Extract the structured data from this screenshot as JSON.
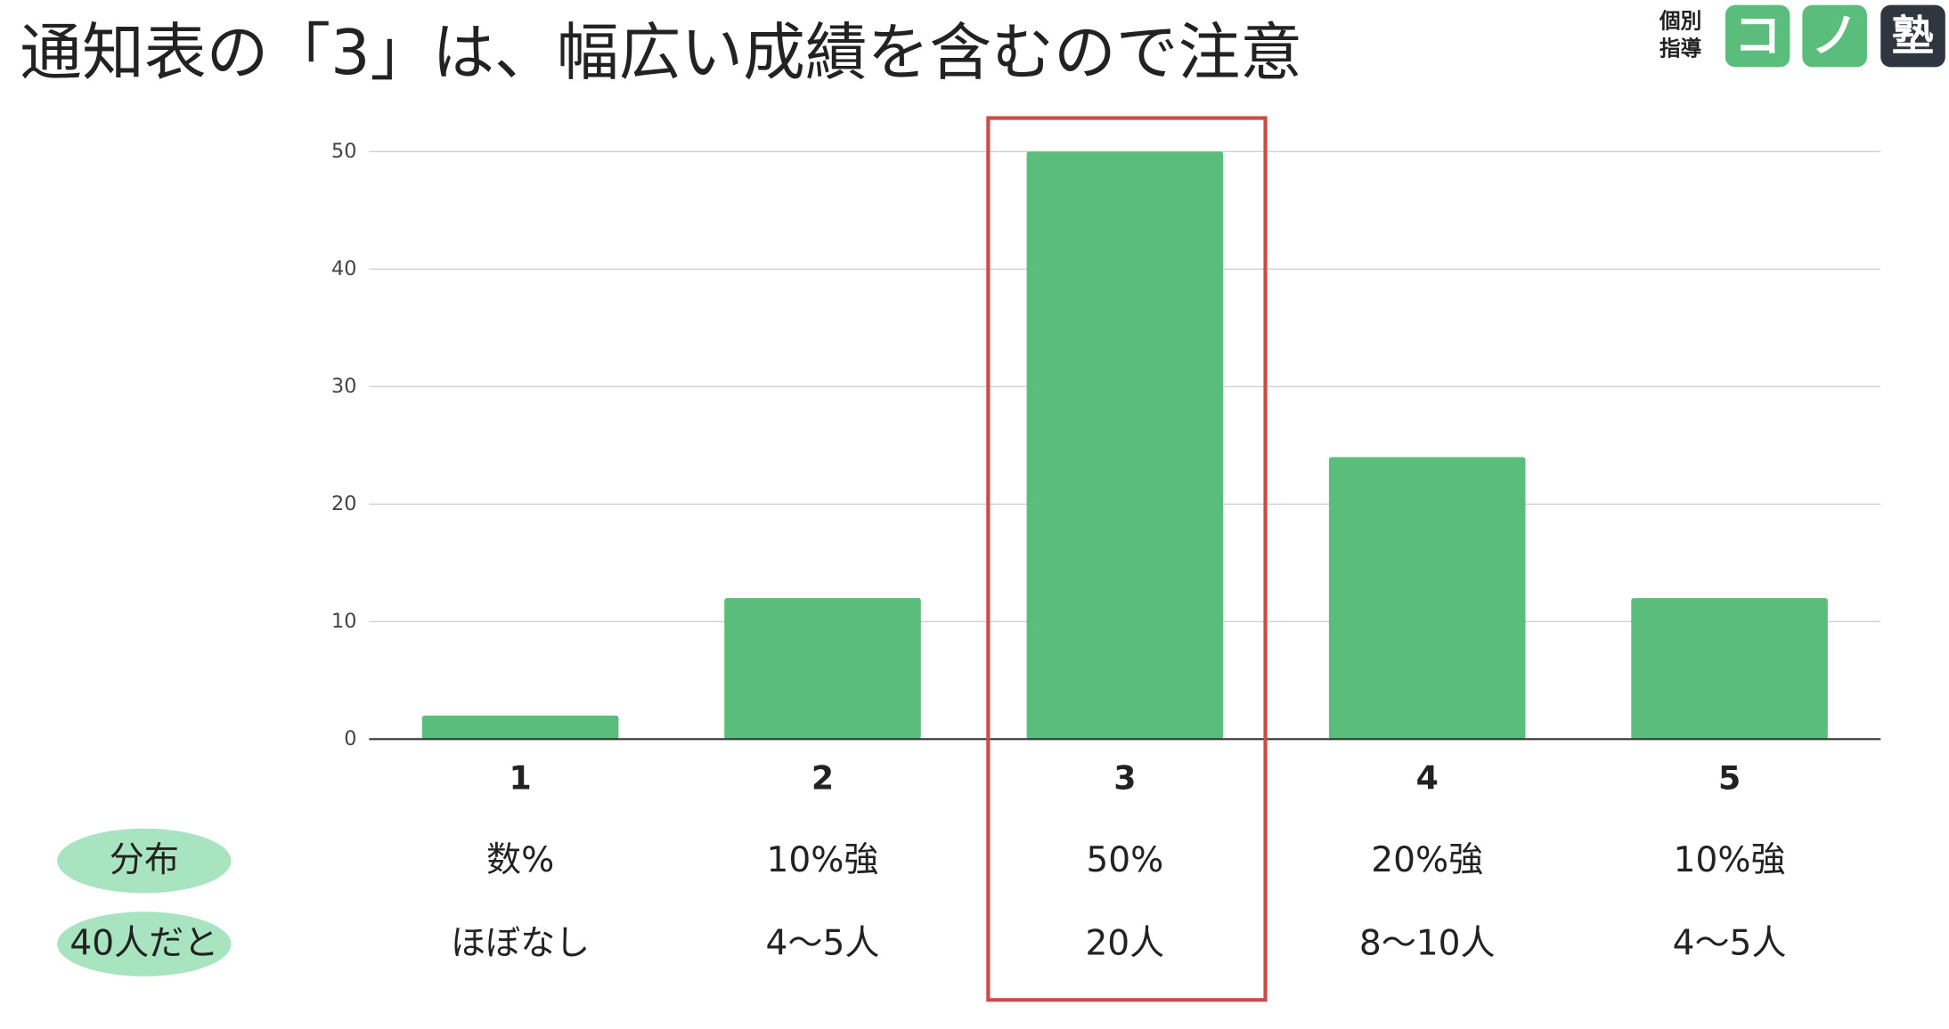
{
  "chart_data": {
    "type": "bar",
    "title": "通知表の「3」は、幅広い成績を含むので注意",
    "categories": [
      "1",
      "2",
      "3",
      "4",
      "5"
    ],
    "values": [
      2,
      12,
      50,
      24,
      12
    ],
    "color": "#5bbd7b",
    "ylim": [
      0,
      50
    ],
    "yticks": [
      0,
      10,
      20,
      30,
      40,
      50
    ],
    "grid": true,
    "rows": [
      {
        "label": "分布",
        "values": [
          "数%",
          "10%強",
          "50%",
          "20%強",
          "10%強"
        ]
      },
      {
        "label": "40人だと",
        "values": [
          "ほぼなし",
          "4〜5人",
          "20人",
          "8〜10人",
          "4〜5人"
        ]
      }
    ]
  },
  "logo": {
    "text": [
      "個別",
      "指導"
    ],
    "marks": [
      "コ",
      "ノ",
      "塾"
    ]
  }
}
